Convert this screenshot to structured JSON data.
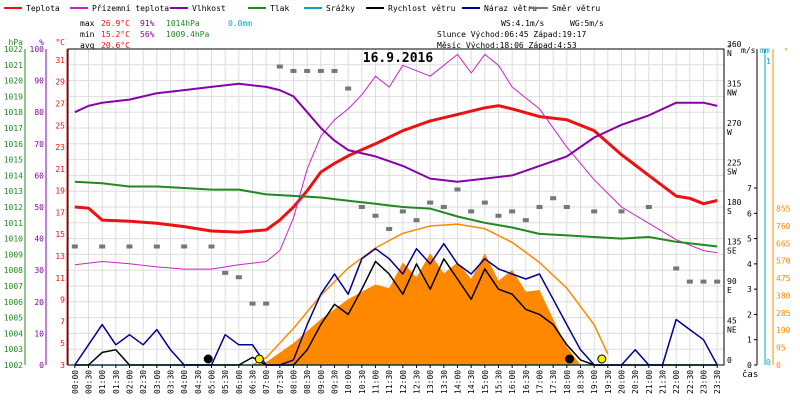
{
  "legend": [
    {
      "label": "Teplota",
      "color": "#ee1111"
    },
    {
      "label": "Přízemní teplota",
      "color": "#cc22cc"
    },
    {
      "label": "Vlhkost",
      "color": "#8800aa"
    },
    {
      "label": "Tlak",
      "color": "#228822"
    },
    {
      "label": "Srážky",
      "color": "#00aacc"
    },
    {
      "label": "Rychlost větru",
      "color": "#000000"
    },
    {
      "label": "Náraz větru",
      "color": "#000099"
    },
    {
      "label": "Směr větru",
      "color": "#777777"
    }
  ],
  "stats": {
    "max": {
      "label": "max",
      "temp": "26.9°C",
      "hum": "91%",
      "press": "1014hPa",
      "rain": "0.0mm"
    },
    "min": {
      "label": "min",
      "temp": "15.2°C",
      "hum": "56%",
      "press": "1009.4hPa"
    },
    "avg": {
      "label": "avg",
      "temp": "20.6°C"
    }
  },
  "info": {
    "ws": "WS:4.1m/s",
    "wg": "WG:5m/s",
    "sun": "Slunce Východ:06:45  Západ:19:17",
    "moon": "Měsíc  Východ:18:06  Západ:4:53"
  },
  "chart_data": {
    "type": "line",
    "title": "16.9.2016",
    "xlabel": "čas",
    "x_ticks": [
      "00:00",
      "00:30",
      "01:00",
      "01:30",
      "02:00",
      "02:30",
      "03:00",
      "03:30",
      "04:00",
      "04:30",
      "05:00",
      "05:30",
      "06:00",
      "06:30",
      "07:00",
      "07:30",
      "08:00",
      "08:30",
      "09:00",
      "09:30",
      "10:00",
      "10:30",
      "11:00",
      "11:30",
      "12:00",
      "12:30",
      "13:00",
      "13:30",
      "14:00",
      "14:30",
      "15:00",
      "15:30",
      "16:00",
      "16:30",
      "17:00",
      "17:30",
      "18:00",
      "18:30",
      "19:00",
      "19:30",
      "20:00",
      "20:30",
      "21:00",
      "21:30",
      "22:00",
      "22:30",
      "23:00",
      "23:30"
    ],
    "axes": {
      "hpa": {
        "label": "hPa",
        "color": "#228822",
        "range": [
          1002,
          1022
        ],
        "ticks": [
          "1002",
          "1003",
          "1004",
          "1005",
          "1006",
          "1007",
          "1008",
          "1009",
          "1010",
          "1011",
          "1012",
          "1013",
          "1014",
          "1015",
          "1016",
          "1017",
          "1018",
          "1019",
          "1020",
          "1021",
          "1022"
        ]
      },
      "percent": {
        "label": "%",
        "color": "#8800aa",
        "range": [
          0,
          100
        ],
        "ticks": [
          "0",
          "10",
          "20",
          "30",
          "40",
          "50",
          "60",
          "70",
          "80",
          "90",
          "100"
        ]
      },
      "celsius": {
        "label": "°C",
        "color": "#ee1111",
        "range": [
          3,
          32
        ],
        "ticks": [
          "3",
          "5",
          "7",
          "9",
          "11",
          "13",
          "15",
          "17",
          "19",
          "21",
          "23",
          "25",
          "27",
          "29",
          "31"
        ]
      },
      "direction": {
        "label": "°",
        "ticks": [
          "0",
          "45 NE",
          "90 E",
          "135 SE",
          "180 S",
          "225 SW",
          "270 W",
          "315 NW",
          "360 N"
        ]
      },
      "wind": {
        "label": "m/s",
        "range": [
          0,
          7
        ],
        "ticks": [
          "0",
          "1",
          "2",
          "3",
          "4",
          "5",
          "6",
          "7"
        ]
      },
      "rain": {
        "label": "mm",
        "color": "#00aacc",
        "ticks": [
          "0",
          "1"
        ]
      },
      "solar": {
        "color": "#ff8800",
        "range": [
          0,
          950
        ],
        "ticks": [
          "0",
          "95",
          "190",
          "285",
          "380",
          "475",
          "570",
          "665",
          "760",
          "855"
        ]
      }
    },
    "series": [
      {
        "name": "Teplota",
        "unit": "°C",
        "color": "#ee1111",
        "x": [
          0,
          0.5,
          1,
          2,
          3,
          4,
          5,
          6,
          6.5,
          7,
          7.5,
          8,
          8.5,
          9,
          9.5,
          10,
          11,
          12,
          13,
          14,
          15,
          15.5,
          16,
          17,
          18,
          19,
          20,
          21,
          22,
          22.5,
          23,
          23.5
        ],
        "y": [
          17.5,
          17.4,
          16.3,
          16.2,
          16.0,
          15.7,
          15.3,
          15.2,
          15.3,
          15.4,
          16.3,
          17.5,
          19.0,
          20.7,
          21.5,
          22.2,
          23.3,
          24.5,
          25.4,
          26.0,
          26.6,
          26.8,
          26.5,
          25.8,
          25.5,
          24.5,
          22.3,
          20.4,
          18.5,
          18.3,
          17.8,
          18.1
        ]
      },
      {
        "name": "Přízemní teplota",
        "unit": "°C",
        "color": "#cc22cc",
        "x": [
          0,
          1,
          2,
          3,
          4,
          5,
          6,
          7,
          7.5,
          8,
          8.5,
          9,
          9.5,
          10,
          10.5,
          11,
          11.5,
          12,
          13,
          14,
          14.5,
          15,
          15.5,
          16,
          17,
          18,
          19,
          20,
          21,
          22,
          23,
          23.5
        ],
        "y": [
          12.2,
          12.5,
          12.3,
          12.0,
          11.8,
          11.8,
          12.2,
          12.5,
          13.5,
          16.5,
          21.0,
          24.0,
          25.5,
          26.5,
          27.8,
          29.5,
          28.5,
          30.5,
          29.5,
          31.5,
          29.8,
          31.5,
          30.5,
          28.5,
          26.5,
          23.0,
          20.0,
          17.5,
          16.0,
          14.5,
          13.5,
          13.3
        ]
      },
      {
        "name": "Vlhkost",
        "unit": "%",
        "color": "#8800aa",
        "x": [
          0,
          0.5,
          1,
          2,
          3,
          4,
          5,
          6,
          7,
          7.5,
          8,
          8.5,
          9,
          9.5,
          10,
          11,
          12,
          13,
          14,
          15,
          16,
          17,
          18,
          19,
          20,
          21,
          22,
          23,
          23.5
        ],
        "y": [
          80,
          82,
          83,
          84,
          86,
          87,
          88,
          89,
          88,
          87,
          85,
          80,
          75,
          71,
          68,
          66,
          63,
          59,
          58,
          59,
          60,
          63,
          66,
          72,
          76,
          79,
          83,
          83,
          82
        ]
      },
      {
        "name": "Tlak",
        "unit": "hPa",
        "color": "#228822",
        "x": [
          0,
          1,
          2,
          3,
          4,
          5,
          6,
          7,
          8,
          9,
          10,
          11,
          12,
          13,
          14,
          15,
          16,
          17,
          18,
          19,
          20,
          21,
          22,
          23,
          23.5
        ],
        "y": [
          1013.6,
          1013.5,
          1013.3,
          1013.3,
          1013.2,
          1013.1,
          1013.1,
          1012.8,
          1012.7,
          1012.6,
          1012.4,
          1012.2,
          1012.0,
          1011.9,
          1011.4,
          1011.0,
          1010.7,
          1010.3,
          1010.2,
          1010.1,
          1010.0,
          1010.1,
          1009.8,
          1009.6,
          1009.5
        ]
      },
      {
        "name": "Srážky",
        "unit": "mm",
        "color": "#00aacc",
        "x": [
          0,
          23.5
        ],
        "y": [
          0,
          0
        ]
      },
      {
        "name": "Rychlost větru",
        "unit": "m/s",
        "color": "#000000",
        "x": [
          0,
          0.5,
          1,
          1.5,
          2,
          2.5,
          3,
          3.5,
          4,
          4.5,
          5,
          5.5,
          6,
          6.5,
          7,
          7.5,
          8,
          8.5,
          9,
          9.5,
          10,
          10.5,
          11,
          11.5,
          12,
          12.5,
          13,
          13.5,
          14,
          14.5,
          15,
          15.5,
          16,
          16.5,
          17,
          17.5,
          18,
          18.5,
          19,
          19.5,
          20,
          20.5,
          21,
          21.5,
          22,
          22.5,
          23,
          23.5
        ],
        "y": [
          0,
          0,
          0.5,
          0.6,
          0,
          0,
          0,
          0,
          0,
          0,
          0,
          0,
          0,
          0.3,
          0,
          0,
          0,
          0.6,
          1.6,
          2.4,
          2.0,
          3.0,
          4.1,
          3.6,
          2.8,
          4.0,
          3.0,
          4.2,
          3.4,
          2.6,
          3.8,
          3.0,
          2.8,
          2.2,
          2.0,
          1.6,
          0.8,
          0.2,
          0,
          0,
          0,
          0,
          0,
          0,
          0,
          0,
          0,
          0
        ]
      },
      {
        "name": "Náraz větru",
        "unit": "m/s",
        "color": "#000099",
        "x": [
          0,
          0.5,
          1,
          1.5,
          2,
          2.5,
          3,
          3.5,
          4,
          4.5,
          5,
          5.5,
          6,
          6.5,
          7,
          7.5,
          8,
          8.5,
          9,
          9.5,
          10,
          10.5,
          11,
          11.5,
          12,
          12.5,
          13,
          13.5,
          14,
          14.5,
          15,
          15.5,
          16,
          16.5,
          17,
          17.5,
          18,
          18.5,
          19,
          19.5,
          20,
          20.5,
          21,
          21.5,
          22,
          22.5,
          23,
          23.5
        ],
        "y": [
          0,
          0.8,
          1.6,
          0.8,
          1.2,
          0.8,
          1.4,
          0.6,
          0,
          0,
          0,
          1.2,
          0.8,
          0.8,
          0,
          0,
          0.2,
          1.6,
          2.8,
          3.6,
          2.8,
          4.2,
          4.6,
          4.2,
          3.6,
          4.6,
          4.0,
          4.8,
          4.0,
          3.6,
          4.2,
          3.8,
          3.6,
          3.4,
          3.6,
          2.6,
          1.6,
          0.6,
          0,
          0,
          0,
          0.6,
          0,
          0,
          1.8,
          1.4,
          1.0,
          0
        ]
      },
      {
        "name": "Směr větru",
        "unit": "°",
        "color": "#777777",
        "x": [
          0,
          1,
          2,
          3,
          4,
          5,
          5.5,
          6,
          6.5,
          7,
          7.5,
          8,
          8.5,
          9,
          9.5,
          10,
          10.5,
          11,
          11.5,
          12,
          12.5,
          13,
          13.5,
          14,
          14.5,
          15,
          15.5,
          16,
          16.5,
          17,
          17.5,
          18,
          19,
          20,
          21,
          22,
          22.5,
          23,
          23.5
        ],
        "y": [
          135,
          135,
          135,
          135,
          135,
          135,
          105,
          100,
          70,
          70,
          340,
          335,
          335,
          335,
          335,
          315,
          180,
          170,
          155,
          175,
          165,
          185,
          180,
          200,
          175,
          185,
          170,
          175,
          165,
          180,
          190,
          180,
          175,
          175,
          180,
          110,
          95,
          95,
          95
        ]
      },
      {
        "name": "Solar",
        "unit": "W/m²",
        "color": "#ff8800",
        "x": [
          6.5,
          7,
          8,
          9,
          10,
          11,
          11.5,
          12,
          12.5,
          13,
          13.5,
          14,
          14.5,
          15,
          15.5,
          16,
          16.5,
          17,
          17.5,
          18,
          18.5
        ],
        "y": [
          0,
          15,
          120,
          250,
          360,
          440,
          420,
          560,
          480,
          610,
          500,
          560,
          470,
          610,
          460,
          520,
          400,
          410,
          250,
          100,
          0
        ]
      },
      {
        "name": "Solar max",
        "unit": "W/m²",
        "color": "#ff8800",
        "x": [
          6.5,
          7,
          8,
          9,
          10,
          11,
          12,
          13,
          14,
          15,
          16,
          17,
          18,
          19,
          19.5
        ],
        "y": [
          0,
          40,
          200,
          380,
          530,
          640,
          720,
          760,
          770,
          745,
          670,
          560,
          420,
          220,
          60
        ]
      }
    ],
    "markers": [
      {
        "name": "sunrise",
        "x": 6.75,
        "color": "#ffee00"
      },
      {
        "name": "sunset",
        "x": 19.28,
        "color": "#ffee00"
      },
      {
        "name": "moonrise",
        "x": 18.1,
        "color": "#000000"
      },
      {
        "name": "moonset",
        "x": 4.88,
        "color": "#000000"
      }
    ],
    "grid": true
  }
}
